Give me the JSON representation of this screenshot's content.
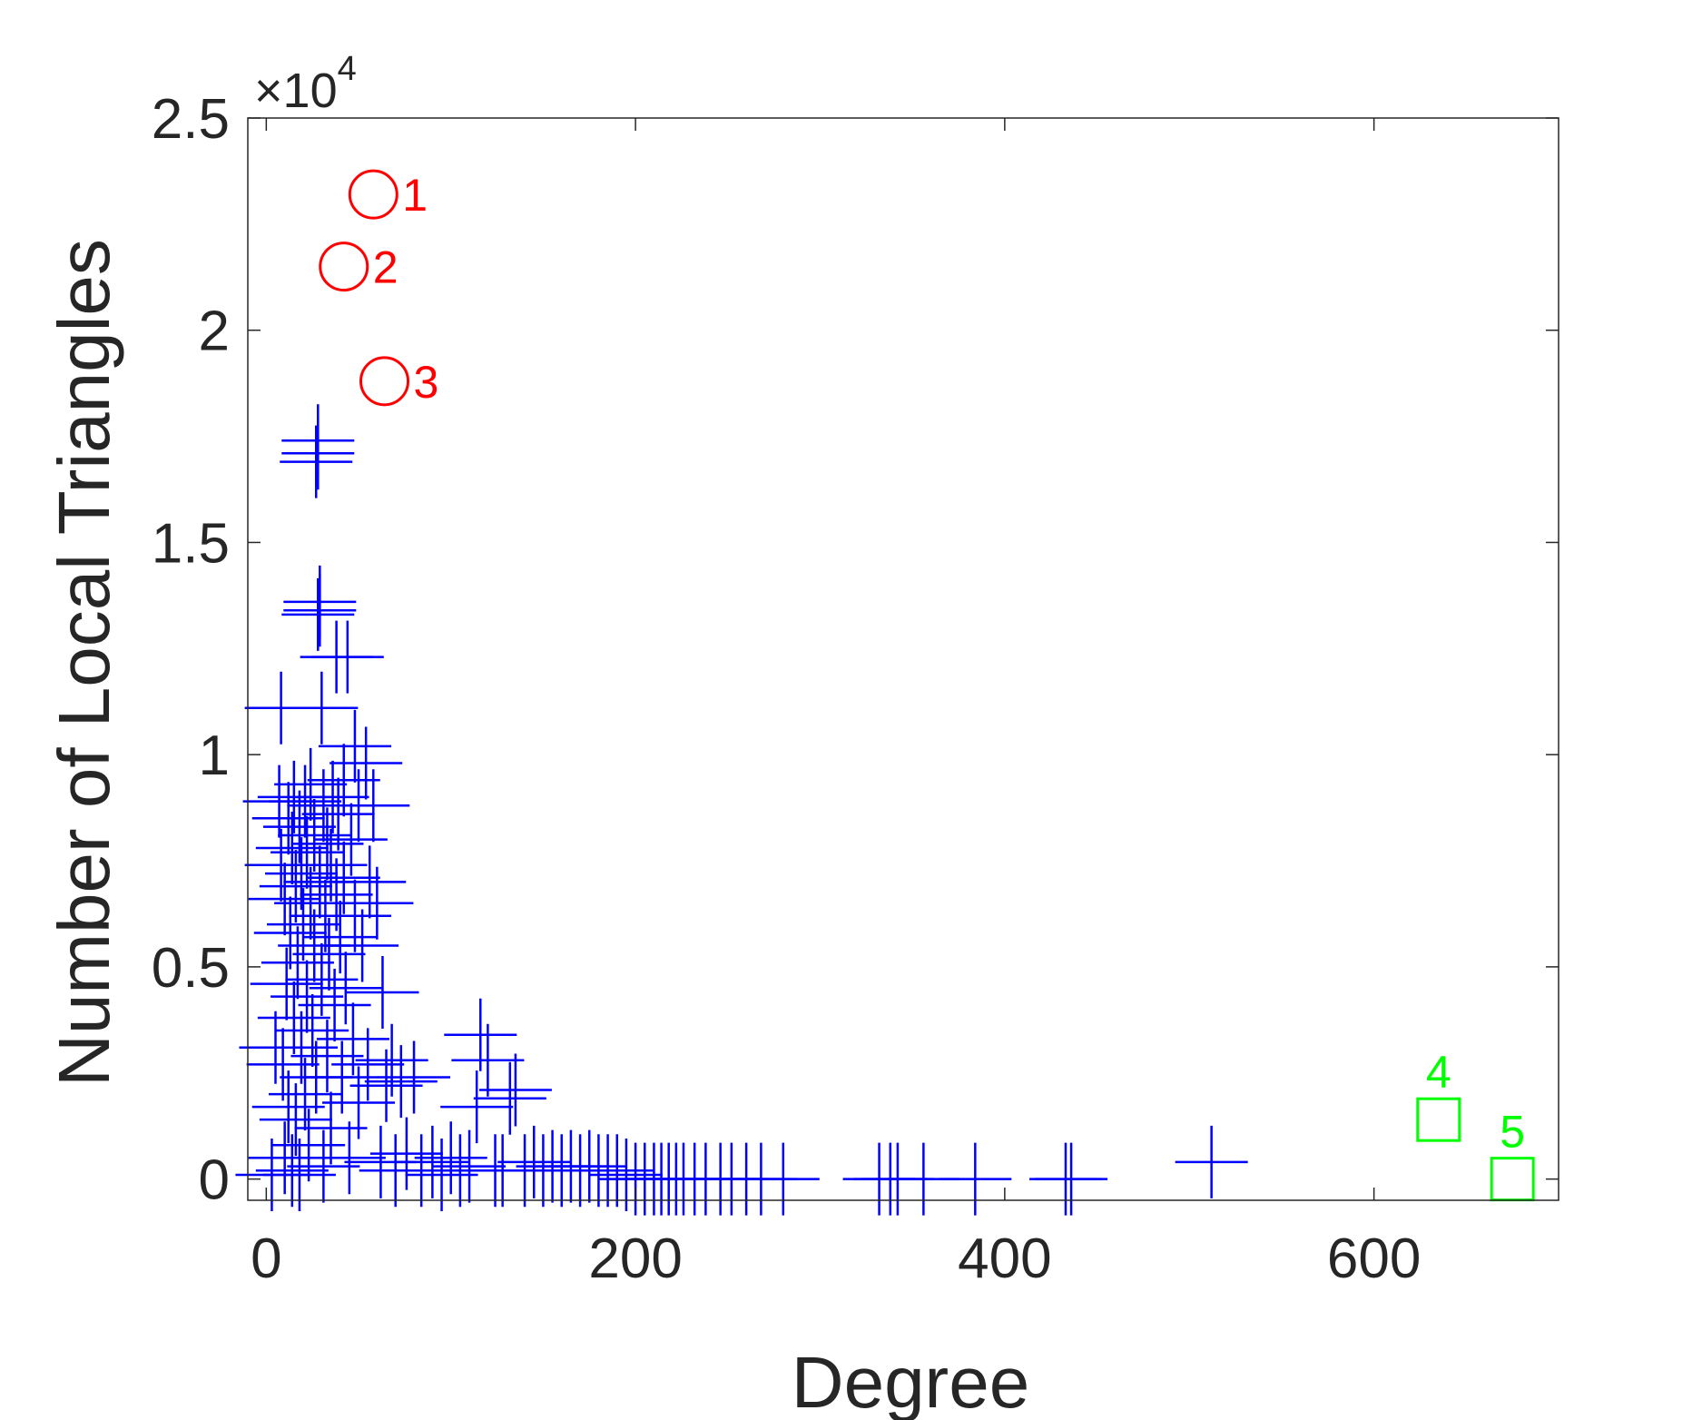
{
  "chart_data": {
    "type": "scatter",
    "title": "",
    "xlabel": "Degree",
    "ylabel": "Number of Local Triangles",
    "y_exponent_base": "×10",
    "y_exponent_power": "4",
    "xlim": [
      -10,
      700
    ],
    "ylim": [
      -0.05,
      2.5
    ],
    "xticks": [
      0,
      200,
      400,
      600
    ],
    "xtick_labels": [
      "0",
      "200",
      "400",
      "600"
    ],
    "yticks": [
      0,
      0.5,
      1,
      1.5,
      2,
      2.5
    ],
    "ytick_labels": [
      "0",
      "0.5",
      "1",
      "1.5",
      "2",
      "2.5"
    ],
    "y_units": "x10^4 triangles",
    "grid": false,
    "legend": "none",
    "series": [
      {
        "marker": "plus",
        "color": "#0000ff",
        "points": [
          [
            3,
            0.01
          ],
          [
            5,
            0.31
          ],
          [
            7,
            0.89
          ],
          [
            8,
            1.11
          ],
          [
            8,
            0.74
          ],
          [
            9,
            0.27
          ],
          [
            10,
            0.05
          ],
          [
            10,
            0.66
          ],
          [
            11,
            0.46
          ],
          [
            12,
            0.85
          ],
          [
            12,
            0.17
          ],
          [
            13,
            0.58
          ],
          [
            14,
            0.78
          ],
          [
            14,
            0.02
          ],
          [
            15,
            0.38
          ],
          [
            15,
            0.9
          ],
          [
            16,
            0.69
          ],
          [
            16,
            0.14
          ],
          [
            17,
            0.51
          ],
          [
            18,
            0.83
          ],
          [
            18,
            0.01
          ],
          [
            19,
            0.31
          ],
          [
            19,
            0.72
          ],
          [
            20,
            0.6
          ],
          [
            21,
            0.2
          ],
          [
            21,
            0.89
          ],
          [
            22,
            0.77
          ],
          [
            22,
            0.43
          ],
          [
            23,
            0.08
          ],
          [
            24,
            0.65
          ],
          [
            24,
            0.93
          ],
          [
            25,
            0.35
          ],
          [
            26,
            0.55
          ],
          [
            26,
            0.81
          ],
          [
            27,
            1.69
          ],
          [
            27,
            0.24
          ],
          [
            28,
            1.74
          ],
          [
            28,
            1.71
          ],
          [
            28,
            1.33
          ],
          [
            29,
            1.36
          ],
          [
            29,
            1.34
          ],
          [
            29,
            0.7
          ],
          [
            30,
            1.11
          ],
          [
            30,
            0.47
          ],
          [
            31,
            0.88
          ],
          [
            31,
            0.03
          ],
          [
            32,
            0.62
          ],
          [
            33,
            0.79
          ],
          [
            33,
            0.29
          ],
          [
            34,
            0.53
          ],
          [
            35,
            0.74
          ],
          [
            35,
            0.12
          ],
          [
            36,
            0.9
          ],
          [
            37,
            0.41
          ],
          [
            38,
            0.67
          ],
          [
            38,
            1.23
          ],
          [
            39,
            0.86
          ],
          [
            40,
            0.57
          ],
          [
            41,
            0.24
          ],
          [
            42,
            0.94
          ],
          [
            42,
            0.71
          ],
          [
            43,
            0.45
          ],
          [
            44,
            1.23
          ],
          [
            45,
            0.05
          ],
          [
            46,
            0.8
          ],
          [
            47,
            0.33
          ],
          [
            48,
            1.02
          ],
          [
            48,
            0.62
          ],
          [
            50,
            0.88
          ],
          [
            50,
            0.18
          ],
          [
            52,
            0.55
          ],
          [
            54,
            0.98
          ],
          [
            55,
            0.27
          ],
          [
            56,
            0.7
          ],
          [
            58,
            0.88
          ],
          [
            60,
            0.65
          ],
          [
            62,
            0.04
          ],
          [
            63,
            0.44
          ],
          [
            65,
            0.22
          ],
          [
            68,
            0.28
          ],
          [
            70,
            0.02
          ],
          [
            73,
            0.23
          ],
          [
            76,
            0.06
          ],
          [
            80,
            0.24
          ],
          [
            84,
            0.02
          ],
          [
            90,
            0.04
          ],
          [
            95,
            0.01
          ],
          [
            100,
            0.05
          ],
          [
            105,
            0.02
          ],
          [
            110,
            0.03
          ],
          [
            114,
            0.17
          ],
          [
            116,
            0.34
          ],
          [
            120,
            0.28
          ],
          [
            124,
            0.02
          ],
          [
            128,
            0.02
          ],
          [
            132,
            0.19
          ],
          [
            135,
            0.21
          ],
          [
            140,
            0.02
          ],
          [
            145,
            0.04
          ],
          [
            150,
            0.02
          ],
          [
            155,
            0.03
          ],
          [
            160,
            0.02
          ],
          [
            165,
            0.03
          ],
          [
            170,
            0.02
          ],
          [
            175,
            0.03
          ],
          [
            180,
            0.02
          ],
          [
            185,
            0.02
          ],
          [
            190,
            0.02
          ],
          [
            195,
            0.01
          ],
          [
            200,
            0.0
          ],
          [
            205,
            0.0
          ],
          [
            210,
            0.0
          ],
          [
            214,
            0.0
          ],
          [
            218,
            0.0
          ],
          [
            222,
            0.0
          ],
          [
            226,
            0.0
          ],
          [
            232,
            0.0
          ],
          [
            238,
            0.0
          ],
          [
            246,
            0.0
          ],
          [
            252,
            0.0
          ],
          [
            260,
            0.0
          ],
          [
            268,
            0.0
          ],
          [
            280,
            0.0
          ],
          [
            332,
            0.0
          ],
          [
            338,
            0.0
          ],
          [
            342,
            0.0
          ],
          [
            356,
            0.0
          ],
          [
            384,
            0.0
          ],
          [
            433,
            0.0
          ],
          [
            436,
            0.0
          ],
          [
            512,
            0.04
          ]
        ]
      },
      {
        "marker": "circle",
        "color": "#ff0000",
        "points": [
          [
            58,
            2.32
          ],
          [
            42,
            2.15
          ],
          [
            64,
            1.88
          ]
        ],
        "labels": [
          "1",
          "2",
          "3"
        ]
      },
      {
        "marker": "square",
        "color": "#00ff00",
        "points": [
          [
            635,
            0.14
          ],
          [
            675,
            0.0
          ]
        ],
        "labels": [
          "4",
          "5"
        ]
      }
    ]
  }
}
